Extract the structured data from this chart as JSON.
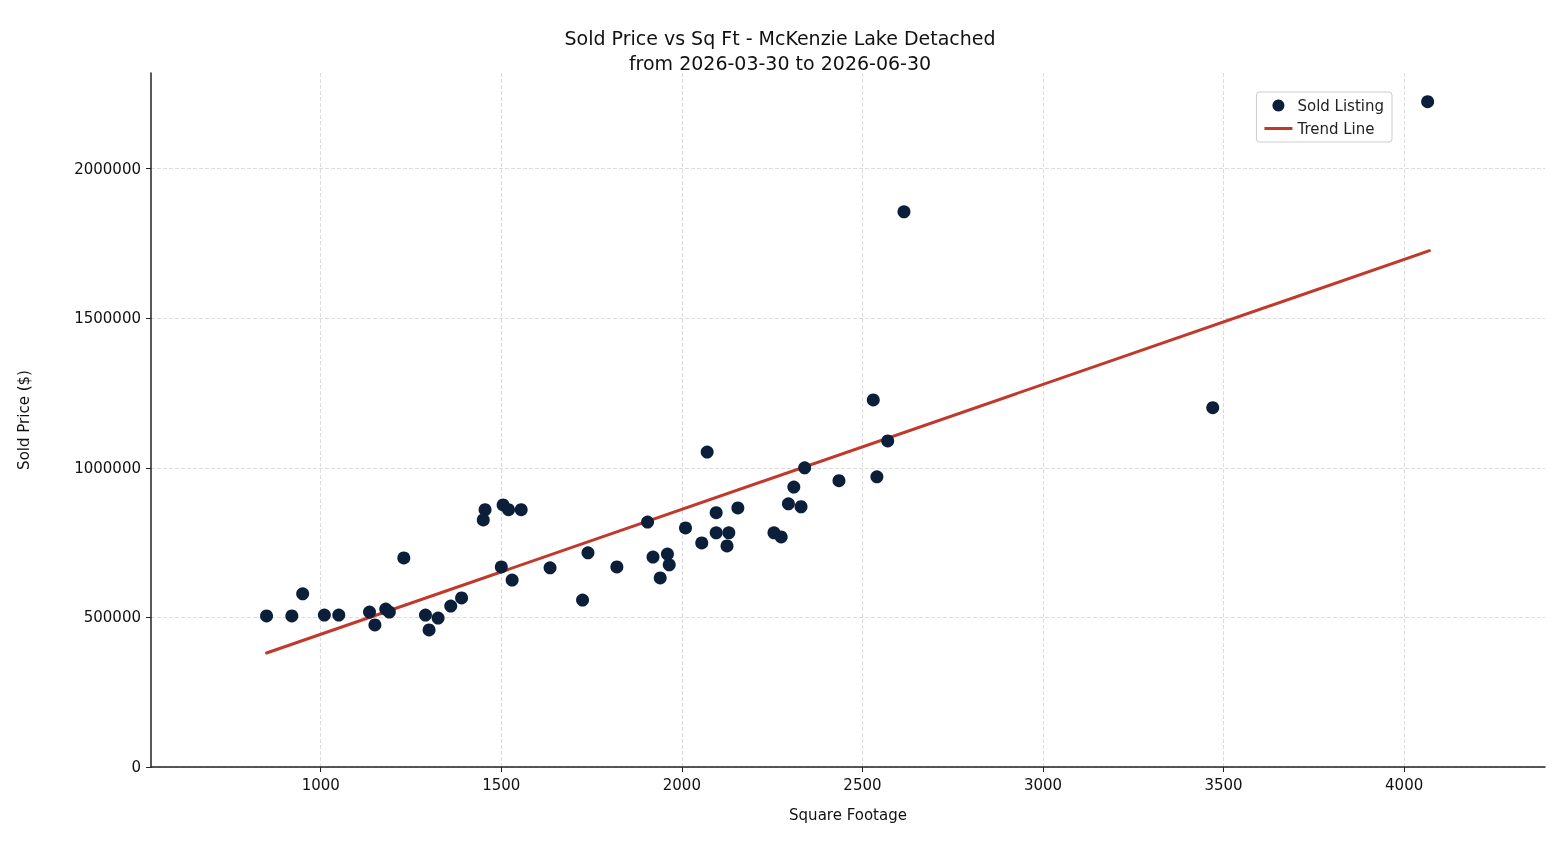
{
  "chart_data": {
    "type": "scatter",
    "title": "Sold Price vs Sq Ft - McKenzie Lake Detached\nfrom 2026-03-30 to 2026-06-30",
    "xlabel": "Square Footage",
    "ylabel": "Sold Price ($)",
    "xlim": [
      530,
      4390
    ],
    "ylim": [
      0,
      2320000
    ],
    "xticks": [
      1000,
      1500,
      2000,
      2500,
      3000,
      3500,
      4000
    ],
    "yticks": [
      0,
      500000,
      1000000,
      1500000,
      2000000
    ],
    "grid": true,
    "legend": "top right",
    "series": [
      {
        "name": "Sold Listing",
        "marker": "circle",
        "color": "#0b1f3a",
        "x": [
          850,
          920,
          950,
          1010,
          1050,
          1135,
          1150,
          1180,
          1190,
          1230,
          1290,
          1300,
          1325,
          1360,
          1390,
          1455,
          1450,
          1505,
          1520,
          1555,
          1500,
          1530,
          1635,
          1725,
          1740,
          1820,
          1905,
          1920,
          1940,
          1960,
          1965,
          2010,
          2055,
          2070,
          2095,
          2095,
          2125,
          2130,
          2155,
          2255,
          2275,
          2295,
          2310,
          2330,
          2340,
          2435,
          2530,
          2540,
          2570,
          2615,
          3470,
          4065
        ],
        "values": [
          505000,
          505000,
          579000,
          508000,
          508000,
          518000,
          475000,
          528000,
          518000,
          699000,
          508000,
          458000,
          498000,
          538000,
          565000,
          860000,
          826000,
          876000,
          860000,
          860000,
          669000,
          625000,
          666000,
          558000,
          716000,
          669000,
          819000,
          702000,
          632000,
          712000,
          676000,
          799000,
          749000,
          1053000,
          850000,
          783000,
          739000,
          783000,
          866000,
          783000,
          769000,
          880000,
          936000,
          870000,
          1000000,
          957000,
          1227000,
          970000,
          1090000,
          1856000,
          1201000,
          2224000
        ]
      },
      {
        "name": "Trend Line",
        "type": "line",
        "color": "#c0392b",
        "line_style": "solid",
        "x": [
          850,
          4070
        ],
        "values": [
          381000,
          1726000
        ]
      }
    ]
  }
}
